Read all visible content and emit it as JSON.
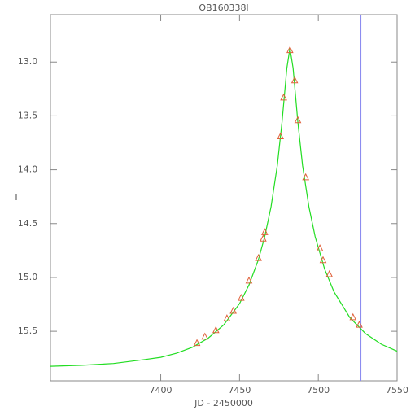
{
  "chart_data": {
    "type": "scatter",
    "title": "OB160338l",
    "x_label": "JD - 2450000",
    "y_label": "I",
    "xlim": [
      7330,
      7550
    ],
    "xticks": [
      7400,
      7450,
      7500,
      7550
    ],
    "ylim": [
      15.96,
      12.56
    ],
    "yticks": [
      13.0,
      13.5,
      14.0,
      14.5,
      15.0,
      15.5
    ],
    "vline": {
      "x": 7527,
      "color": "#8c8cf0"
    },
    "series": [
      {
        "kind": "line",
        "color": "#22dd22",
        "x": [
          7330,
          7350,
          7370,
          7390,
          7400,
          7410,
          7420,
          7430,
          7440,
          7450,
          7456,
          7462,
          7466,
          7470,
          7474,
          7477,
          7480,
          7482,
          7484,
          7487,
          7490,
          7494,
          7498,
          7504,
          7510,
          7520,
          7530,
          7540,
          7550
        ],
        "values": [
          15.825,
          15.816,
          15.799,
          15.762,
          15.742,
          15.704,
          15.649,
          15.565,
          15.44,
          15.243,
          15.07,
          14.834,
          14.622,
          14.343,
          13.959,
          13.556,
          13.057,
          12.871,
          13.057,
          13.556,
          13.959,
          14.343,
          14.622,
          14.922,
          15.134,
          15.372,
          15.522,
          15.62,
          15.685
        ]
      },
      {
        "kind": "points",
        "color": "#e0603a",
        "x": [
          7423,
          7428,
          7435,
          7442,
          7446,
          7451,
          7456,
          7462,
          7465,
          7466,
          7476,
          7478,
          7482,
          7485,
          7487,
          7492,
          7501,
          7503,
          7507,
          7522,
          7526
        ],
        "values": [
          15.61,
          15.55,
          15.49,
          15.38,
          15.31,
          15.19,
          15.03,
          14.82,
          14.64,
          14.58,
          13.69,
          13.33,
          12.89,
          13.17,
          13.54,
          14.07,
          14.73,
          14.84,
          14.97,
          15.37,
          15.44
        ]
      }
    ]
  }
}
